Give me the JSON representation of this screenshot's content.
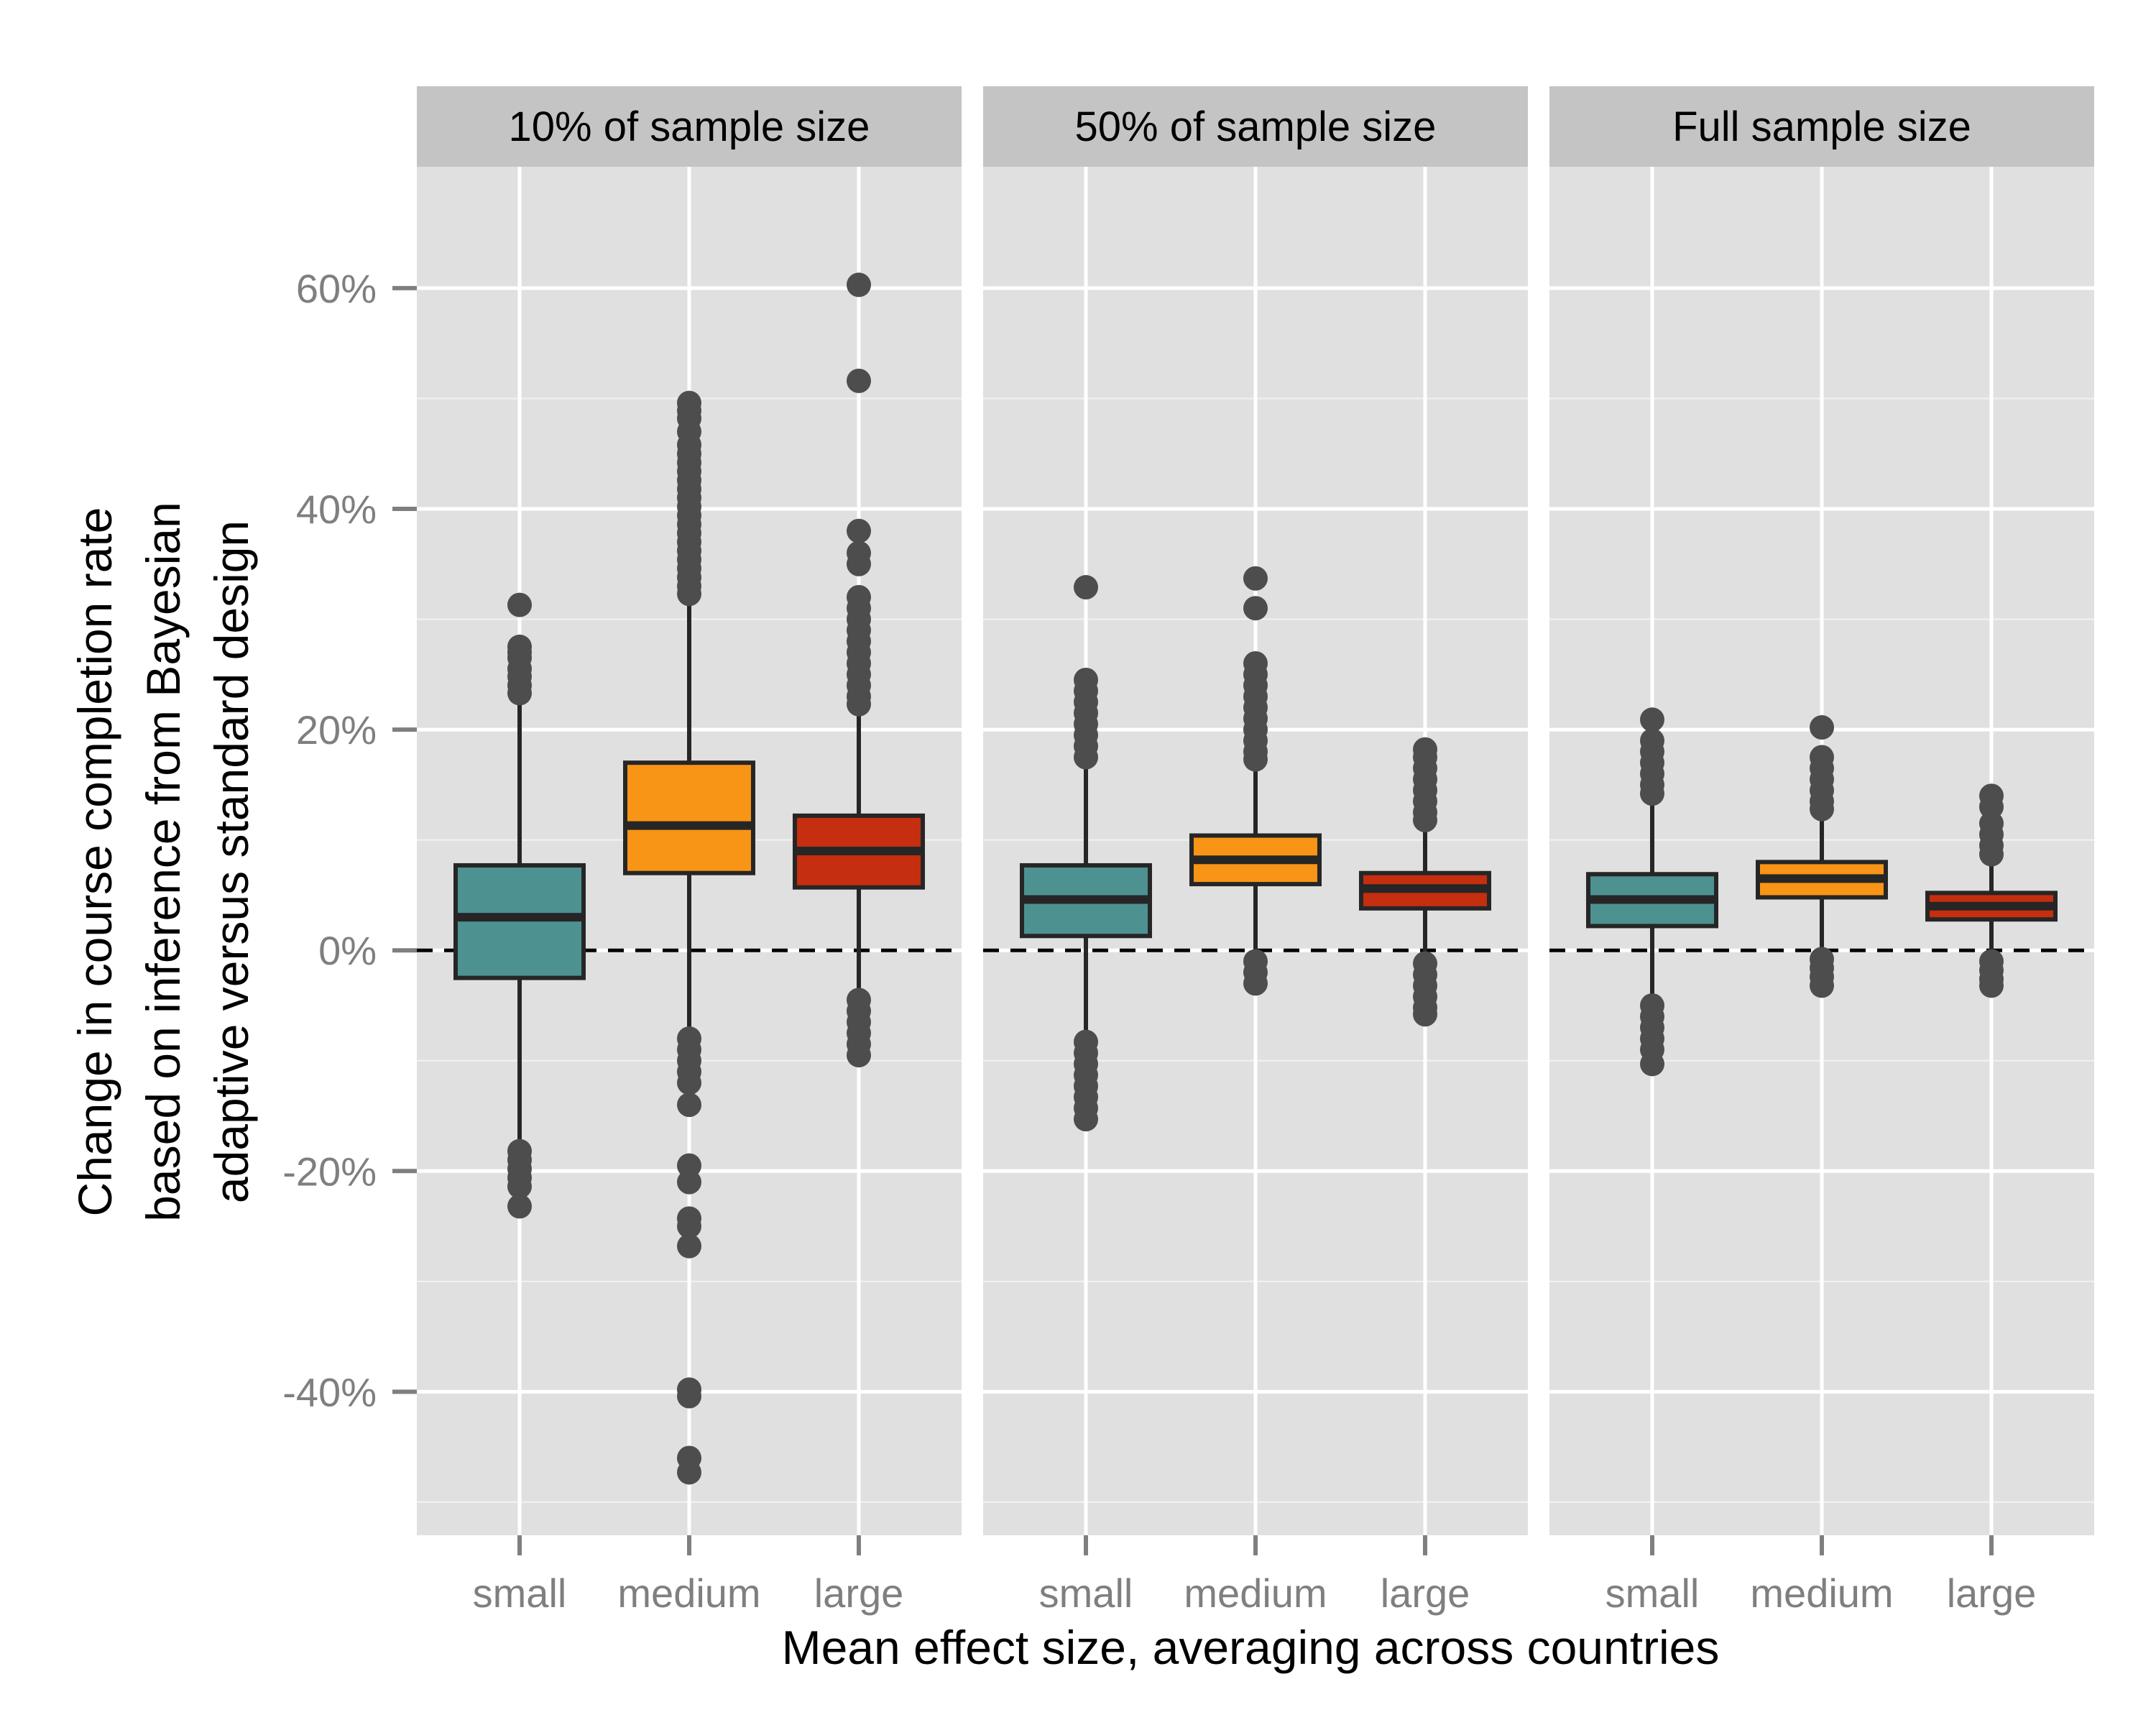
{
  "chart_data": {
    "type": "boxplot",
    "xlabel": "Mean effect size, averaging across countries",
    "ylabel_lines": [
      "Change in course completion rate",
      "based on inference from Bayesian",
      "adaptive versus standard design"
    ],
    "categories": [
      "small",
      "medium",
      "large"
    ],
    "ylim": [
      -53,
      71
    ],
    "y_ticks": [
      -40,
      -20,
      0,
      20,
      40,
      60
    ],
    "y_tick_labels": [
      "-40%",
      "-20%",
      "0%",
      "20%",
      "40%",
      "60%"
    ],
    "reference_line": {
      "y": 0,
      "style": "dashed"
    },
    "grid": true,
    "colors": {
      "panel_background": "#e0e0e0",
      "strip_background": "#c4c4c4",
      "grid": "#ffffff",
      "outlier": "#4d4d4d",
      "box_outline": "#262626",
      "small": "#4e9191",
      "medium": "#f89416",
      "large": "#c52e0f"
    },
    "panels": [
      {
        "title": "10% of sample size",
        "boxes": [
          {
            "category": "small",
            "q1": -2.5,
            "median": 3.0,
            "q3": 7.7,
            "whisker_low": -17.5,
            "whisker_high": 22.5,
            "outliers": [
              31.3,
              27.5,
              27.0,
              26.5,
              25.5,
              24.8,
              24.0,
              23.3,
              -18.2,
              -19.0,
              -19.8,
              -20.6,
              -21.4,
              -23.2
            ]
          },
          {
            "category": "medium",
            "q1": 7.0,
            "median": 11.3,
            "q3": 17.0,
            "whisker_low": -7.0,
            "whisker_high": 31.5,
            "outliers": [
              49.6,
              48.9,
              48.2,
              47.0,
              45.8,
              45.0,
              44.2,
              43.4,
              42.6,
              41.8,
              41.0,
              40.2,
              39.4,
              38.6,
              37.8,
              37.0,
              36.2,
              35.4,
              34.6,
              33.8,
              33.0,
              32.3,
              -8.0,
              -9.0,
              -10.0,
              -11.0,
              -12.0,
              -14.0,
              -19.5,
              -21.0,
              -24.3,
              -25.0,
              -26.8,
              -39.8,
              -40.4,
              -46.0,
              -47.3
            ]
          },
          {
            "category": "large",
            "q1": 5.7,
            "median": 9.0,
            "q3": 12.2,
            "whisker_low": -3.8,
            "whisker_high": 21.8,
            "outliers": [
              60.3,
              51.6,
              38.0,
              36.0,
              35.0,
              32.0,
              31.0,
              30.0,
              29.0,
              28.0,
              27.0,
              26.0,
              25.0,
              24.0,
              23.0,
              22.3,
              -4.5,
              -5.5,
              -6.5,
              -7.5,
              -8.5,
              -9.5
            ]
          }
        ]
      },
      {
        "title": "50% of sample size",
        "boxes": [
          {
            "category": "small",
            "q1": 1.3,
            "median": 4.6,
            "q3": 7.7,
            "whisker_low": -7.5,
            "whisker_high": 16.5,
            "outliers": [
              32.9,
              24.5,
              23.5,
              22.5,
              21.5,
              20.5,
              19.5,
              18.5,
              17.5,
              -8.3,
              -9.3,
              -10.3,
              -11.3,
              -12.3,
              -13.3,
              -14.3,
              -15.3
            ]
          },
          {
            "category": "medium",
            "q1": 6.0,
            "median": 8.2,
            "q3": 10.4,
            "whisker_low": -0.3,
            "whisker_high": 16.8,
            "outliers": [
              33.7,
              31.0,
              26.0,
              25.0,
              24.0,
              23.0,
              22.0,
              21.0,
              20.0,
              19.0,
              18.0,
              17.3,
              -1.0,
              -2.0,
              -3.0
            ]
          },
          {
            "category": "large",
            "q1": 3.8,
            "median": 5.6,
            "q3": 7.0,
            "whisker_low": -0.5,
            "whisker_high": 11.5,
            "outliers": [
              18.2,
              17.5,
              16.5,
              15.5,
              14.5,
              13.5,
              12.5,
              11.8,
              -1.2,
              -2.2,
              -3.2,
              -4.2,
              -5.2,
              -5.8
            ]
          }
        ]
      },
      {
        "title": "Full sample size",
        "boxes": [
          {
            "category": "small",
            "q1": 2.2,
            "median": 4.6,
            "q3": 6.9,
            "whisker_low": -4.3,
            "whisker_high": 13.4,
            "outliers": [
              20.9,
              19.0,
              18.0,
              17.0,
              16.0,
              15.0,
              14.2,
              -5.0,
              -6.0,
              -7.0,
              -8.0,
              -9.0,
              -10.3
            ]
          },
          {
            "category": "medium",
            "q1": 4.8,
            "median": 6.5,
            "q3": 8.0,
            "whisker_low": 0.0,
            "whisker_high": 12.3,
            "outliers": [
              20.2,
              17.5,
              16.5,
              15.5,
              14.5,
              13.5,
              12.8,
              -0.8,
              -1.6,
              -2.4,
              -3.2
            ]
          },
          {
            "category": "large",
            "q1": 2.8,
            "median": 4.0,
            "q3": 5.2,
            "whisker_low": -0.3,
            "whisker_high": 8.0,
            "outliers": [
              14.0,
              13.0,
              11.5,
              10.5,
              9.5,
              8.7,
              -1.0,
              -1.8,
              -2.6,
              -3.2
            ]
          }
        ]
      }
    ]
  }
}
